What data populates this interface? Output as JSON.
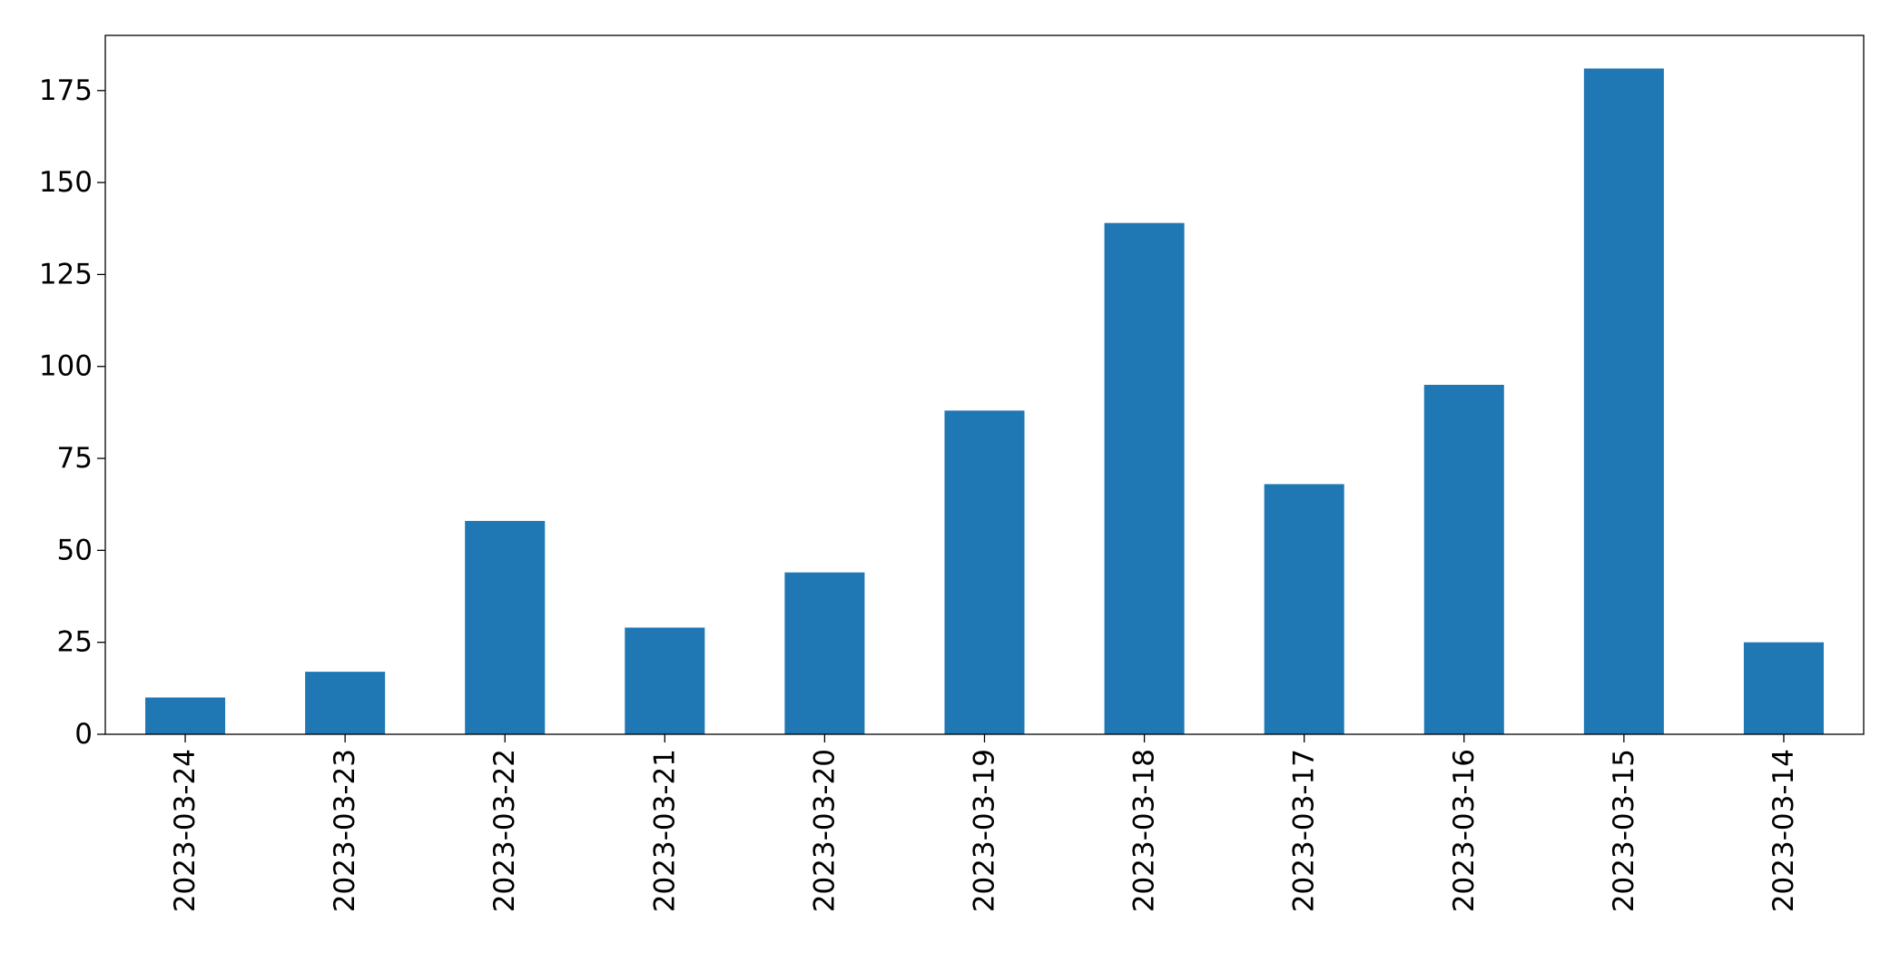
{
  "chart_data": {
    "type": "bar",
    "categories": [
      "2023-03-24",
      "2023-03-23",
      "2023-03-22",
      "2023-03-21",
      "2023-03-20",
      "2023-03-19",
      "2023-03-18",
      "2023-03-17",
      "2023-03-16",
      "2023-03-15",
      "2023-03-14"
    ],
    "values": [
      10,
      17,
      58,
      29,
      44,
      88,
      139,
      68,
      95,
      181,
      25
    ],
    "color": "#1f77b4",
    "ylim": [
      0,
      190
    ],
    "yticks": [
      0,
      25,
      50,
      75,
      100,
      125,
      150,
      175
    ],
    "grid": false
  }
}
